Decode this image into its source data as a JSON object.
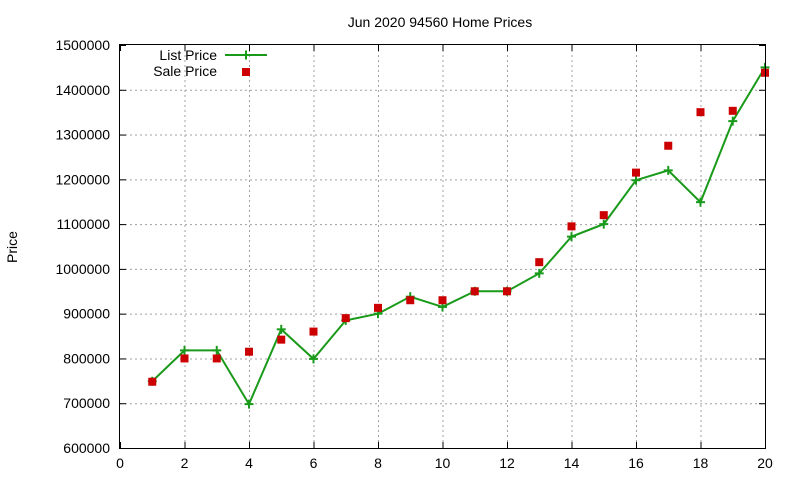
{
  "chart_data": {
    "type": "line",
    "title": "Jun 2020 94560 Home Prices",
    "xlabel": "",
    "ylabel": "Price",
    "xlim": [
      0,
      20
    ],
    "ylim": [
      600000,
      1500000
    ],
    "xticks": [
      "0",
      "2",
      "4",
      "6",
      "8",
      "10",
      "12",
      "14",
      "16",
      "18",
      "20"
    ],
    "yticks": [
      "600000",
      "700000",
      "800000",
      "900000",
      "1000000",
      "1100000",
      "1200000",
      "1300000",
      "1400000",
      "1500000"
    ],
    "grid": true,
    "legend_position": "top-left",
    "series": [
      {
        "name": "List Price",
        "style": "line-with-plus-markers",
        "color": "#1a9a1a",
        "x": [
          1,
          2,
          3,
          4,
          5,
          6,
          7,
          8,
          9,
          10,
          11,
          12,
          13,
          14,
          15,
          16,
          17,
          18,
          19,
          20
        ],
        "values": [
          749000,
          818000,
          818000,
          698000,
          865000,
          799000,
          885000,
          900000,
          938000,
          915000,
          950000,
          950000,
          990000,
          1072000,
          1100000,
          1198000,
          1220000,
          1149000,
          1330000,
          1450000
        ]
      },
      {
        "name": "Sale Price",
        "style": "square-points",
        "color": "#cc0000",
        "x": [
          1,
          2,
          3,
          4,
          5,
          6,
          7,
          8,
          9,
          10,
          11,
          12,
          13,
          14,
          15,
          16,
          17,
          18,
          19,
          20
        ],
        "values": [
          748000,
          800000,
          800000,
          815000,
          842000,
          860000,
          890000,
          913000,
          930000,
          930000,
          950000,
          950000,
          1015000,
          1095000,
          1120000,
          1215000,
          1275000,
          1350000,
          1353000,
          1438000
        ]
      }
    ]
  }
}
